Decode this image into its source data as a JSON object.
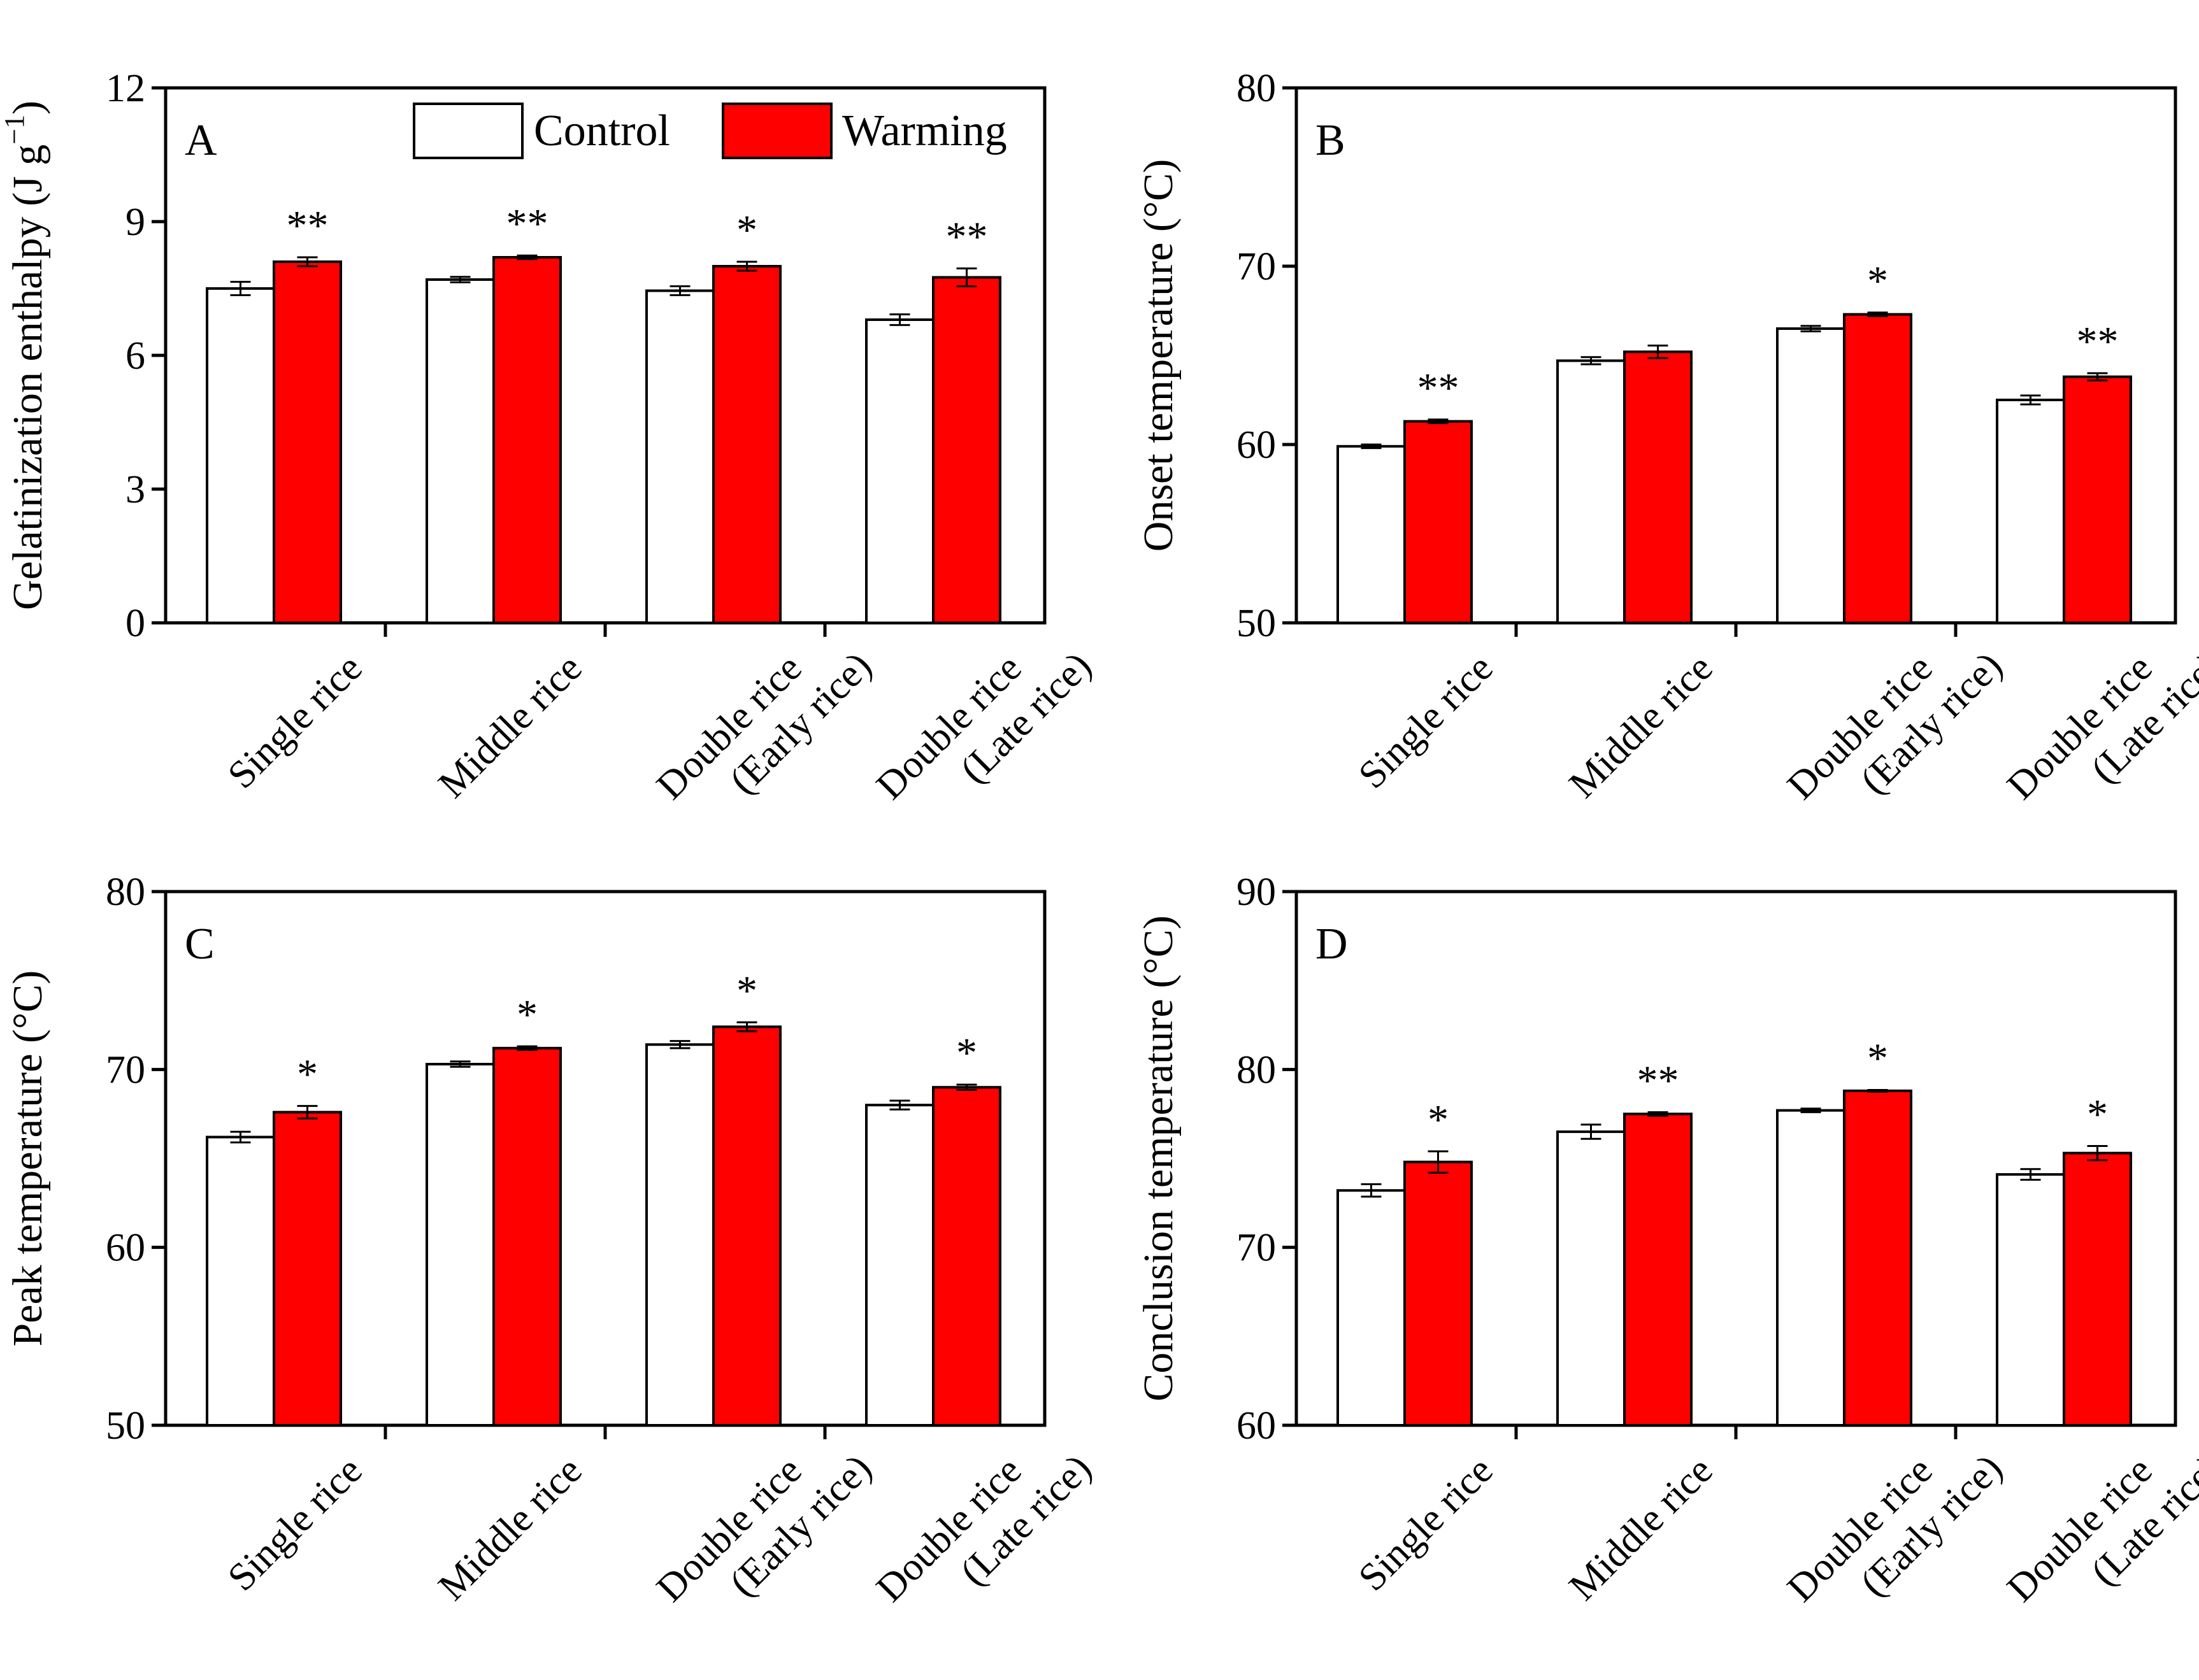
{
  "colors": {
    "control": "#ffffff",
    "warming": "#ff0000",
    "axis": "#000000"
  },
  "legend": {
    "control": "Control",
    "warming": "Warming",
    "placement": "top-right of panel A"
  },
  "chart_data": [
    {
      "type": "bar",
      "panel": "A",
      "ylabel_main": "Gelatinization enthalpy (J g",
      "ylabel_sup": "−1",
      "ylabel_close": ")",
      "ylim": [
        0,
        12
      ],
      "yticks": [
        "0",
        "3",
        "6",
        "9",
        "12"
      ],
      "categories": [
        {
          "line1": "Single rice",
          "line2": ""
        },
        {
          "line1": "Middle rice",
          "line2": ""
        },
        {
          "line1": "Double rice",
          "line2": "(Early rice)"
        },
        {
          "line1": "Double rice",
          "line2": "(Late rice)"
        }
      ],
      "series": [
        {
          "name": "Control",
          "values": [
            7.5,
            7.7,
            7.45,
            6.8
          ],
          "errors": [
            0.15,
            0.06,
            0.1,
            0.12
          ]
        },
        {
          "name": "Warming",
          "values": [
            8.1,
            8.2,
            8.0,
            7.75
          ],
          "errors": [
            0.1,
            0.04,
            0.1,
            0.2
          ]
        }
      ],
      "significance": [
        "**",
        "**",
        "*",
        "**"
      ]
    },
    {
      "type": "bar",
      "panel": "B",
      "ylabel_main": "Onset temperature (°C)",
      "ylabel_sup": "",
      "ylabel_close": "",
      "ylim": [
        50,
        80
      ],
      "yticks": [
        "50",
        "60",
        "70",
        "80"
      ],
      "categories": [
        {
          "line1": "Single rice",
          "line2": ""
        },
        {
          "line1": "Middle rice",
          "line2": ""
        },
        {
          "line1": "Double rice",
          "line2": "(Early rice)"
        },
        {
          "line1": "Double rice",
          "line2": "(Late rice)"
        }
      ],
      "series": [
        {
          "name": "Control",
          "values": [
            59.9,
            64.7,
            66.5,
            62.5
          ],
          "errors": [
            0.1,
            0.2,
            0.15,
            0.25
          ]
        },
        {
          "name": "Warming",
          "values": [
            61.3,
            65.2,
            67.3,
            63.8
          ],
          "errors": [
            0.1,
            0.35,
            0.1,
            0.2
          ]
        }
      ],
      "significance": [
        "**",
        "",
        "*",
        "**"
      ]
    },
    {
      "type": "bar",
      "panel": "C",
      "ylabel_main": "Peak temperature (°C)",
      "ylabel_sup": "",
      "ylabel_close": "",
      "ylim": [
        50,
        80
      ],
      "yticks": [
        "50",
        "60",
        "70",
        "80"
      ],
      "categories": [
        {
          "line1": "Single rice",
          "line2": ""
        },
        {
          "line1": "Middle rice",
          "line2": ""
        },
        {
          "line1": "Double rice",
          "line2": "(Early rice)"
        },
        {
          "line1": "Double rice",
          "line2": "(Late rice)"
        }
      ],
      "series": [
        {
          "name": "Control",
          "values": [
            66.2,
            70.3,
            71.4,
            68.0
          ],
          "errors": [
            0.3,
            0.15,
            0.2,
            0.25
          ]
        },
        {
          "name": "Warming",
          "values": [
            67.6,
            71.2,
            72.4,
            69.0
          ],
          "errors": [
            0.35,
            0.1,
            0.25,
            0.15
          ]
        }
      ],
      "significance": [
        "*",
        "*",
        "*",
        "*"
      ]
    },
    {
      "type": "bar",
      "panel": "D",
      "ylabel_main": "Conclusion temperature (°C)",
      "ylabel_sup": "",
      "ylabel_close": "",
      "ylim": [
        60,
        90
      ],
      "yticks": [
        "60",
        "70",
        "80",
        "90"
      ],
      "categories": [
        {
          "line1": "Single rice",
          "line2": ""
        },
        {
          "line1": "Middle rice",
          "line2": ""
        },
        {
          "line1": "Double rice",
          "line2": "(Early rice)"
        },
        {
          "line1": "Double rice",
          "line2": "(Late rice)"
        }
      ],
      "series": [
        {
          "name": "Control",
          "values": [
            73.2,
            76.5,
            77.7,
            74.1
          ],
          "errors": [
            0.35,
            0.4,
            0.1,
            0.3
          ]
        },
        {
          "name": "Warming",
          "values": [
            74.8,
            77.5,
            78.8,
            75.3
          ],
          "errors": [
            0.6,
            0.1,
            0.05,
            0.4
          ]
        }
      ],
      "significance": [
        "*",
        "**",
        "*",
        "*"
      ]
    }
  ]
}
